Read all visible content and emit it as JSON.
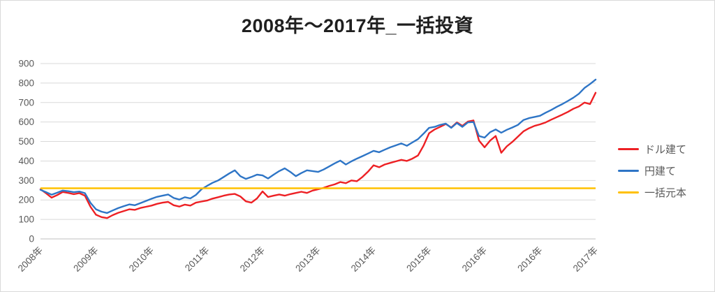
{
  "chart_data": {
    "type": "line",
    "title": "2008年〜2017年_一括投資",
    "xlabel": "",
    "ylabel": "",
    "ylim": [
      0,
      900
    ],
    "y_ticks": [
      0,
      100,
      200,
      300,
      400,
      500,
      600,
      700,
      800,
      900
    ],
    "x_tick_labels": [
      "2008年",
      "2009年",
      "2010年",
      "2011年",
      "2012年",
      "2013年",
      "2014年",
      "2015年",
      "2016年",
      "2016年",
      "2017年"
    ],
    "grid": "horizontal",
    "legend_position": "right",
    "colors": {
      "grid": "#d9d9d9",
      "axis": "#bfbfbf",
      "tick_text": "#595959",
      "title_text": "#1f1f1f"
    },
    "series": [
      {
        "name": "ドル建て",
        "color": "#ed2024",
        "values": [
          255,
          234,
          212,
          225,
          241,
          236,
          230,
          235,
          222,
          165,
          124,
          112,
          107,
          122,
          134,
          143,
          152,
          149,
          159,
          165,
          171,
          180,
          186,
          190,
          173,
          166,
          176,
          171,
          186,
          192,
          197,
          207,
          214,
          222,
          228,
          231,
          218,
          193,
          186,
          208,
          244,
          215,
          222,
          228,
          222,
          230,
          236,
          242,
          236,
          248,
          255,
          262,
          272,
          280,
          292,
          286,
          300,
          296,
          318,
          345,
          378,
          368,
          382,
          390,
          398,
          406,
          400,
          412,
          428,
          478,
          542,
          562,
          575,
          590,
          572,
          598,
          580,
          602,
          608,
          505,
          470,
          505,
          528,
          442,
          475,
          498,
          525,
          552,
          568,
          580,
          588,
          598,
          612,
          625,
          638,
          652,
          668,
          680,
          700,
          692,
          750
        ]
      },
      {
        "name": "円建て",
        "color": "#2e75c6",
        "values": [
          252,
          240,
          227,
          237,
          248,
          245,
          240,
          243,
          235,
          185,
          152,
          140,
          133,
          146,
          158,
          168,
          177,
          173,
          184,
          195,
          206,
          216,
          222,
          228,
          210,
          202,
          214,
          208,
          226,
          255,
          272,
          288,
          300,
          318,
          336,
          352,
          322,
          308,
          318,
          330,
          326,
          310,
          330,
          348,
          362,
          344,
          322,
          338,
          352,
          348,
          344,
          356,
          372,
          388,
          402,
          382,
          398,
          412,
          425,
          438,
          452,
          445,
          458,
          470,
          480,
          490,
          478,
          495,
          512,
          540,
          570,
          575,
          585,
          592,
          570,
          595,
          575,
          598,
          600,
          528,
          520,
          548,
          562,
          545,
          560,
          572,
          585,
          610,
          620,
          626,
          632,
          648,
          662,
          678,
          692,
          708,
          725,
          745,
          775,
          795,
          818
        ]
      },
      {
        "name": "一括元本",
        "color": "#ffc000",
        "constant": 260
      }
    ]
  }
}
